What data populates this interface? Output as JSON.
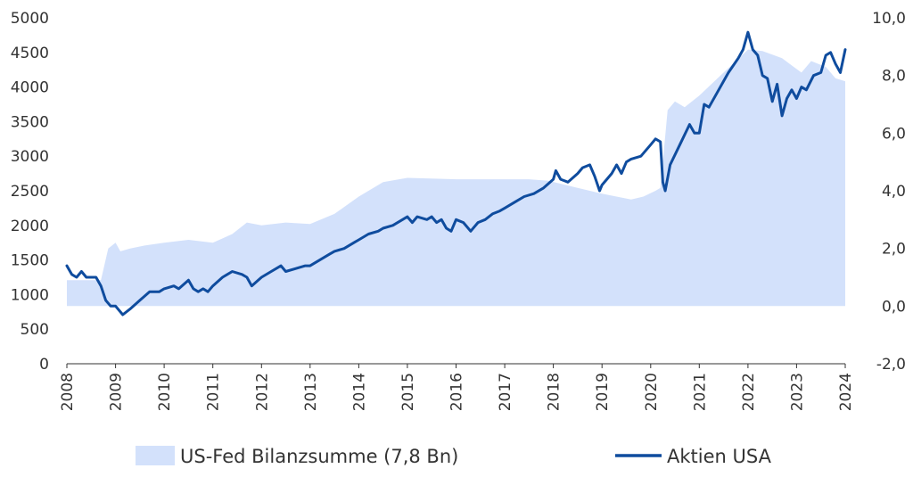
{
  "chart_data": {
    "type": "area",
    "title": "",
    "xlabel": "",
    "ylabel": "",
    "x_tick_labels": [
      "2008",
      "2009",
      "2010",
      "2011",
      "2012",
      "2013",
      "2014",
      "2015",
      "2016",
      "2017",
      "2018",
      "2019",
      "2020",
      "2021",
      "2022",
      "2023",
      "2024"
    ],
    "y_left_tick_labels": [
      "0",
      "500",
      "1000",
      "1500",
      "2000",
      "2500",
      "3000",
      "3500",
      "4000",
      "4500",
      "5000"
    ],
    "y_right_tick_labels": [
      "-2,0",
      "0,0",
      "2,0",
      "4,0",
      "6,0",
      "8,0",
      "10,0"
    ],
    "y_left_lim": [
      0,
      5000
    ],
    "y_right_lim": [
      -2,
      10
    ],
    "x_lim": [
      2008,
      2024
    ],
    "grid": false,
    "legend_position": "bottom",
    "colors": {
      "area": "#d3e1fb",
      "line": "#0f4c9e",
      "text": "#333333"
    },
    "series": [
      {
        "name": "US-Fed Bilanzsumme (7,8 Bn)",
        "axis": "right",
        "kind": "area",
        "points": [
          [
            2008.0,
            0.9
          ],
          [
            2008.7,
            0.9
          ],
          [
            2008.85,
            2.0
          ],
          [
            2009.0,
            2.2
          ],
          [
            2009.1,
            1.9
          ],
          [
            2009.3,
            2.0
          ],
          [
            2009.6,
            2.1
          ],
          [
            2010.0,
            2.2
          ],
          [
            2010.5,
            2.3
          ],
          [
            2011.0,
            2.2
          ],
          [
            2011.4,
            2.5
          ],
          [
            2011.7,
            2.9
          ],
          [
            2012.0,
            2.8
          ],
          [
            2012.5,
            2.9
          ],
          [
            2013.0,
            2.85
          ],
          [
            2013.5,
            3.2
          ],
          [
            2014.0,
            3.8
          ],
          [
            2014.5,
            4.3
          ],
          [
            2015.0,
            4.45
          ],
          [
            2016.0,
            4.4
          ],
          [
            2017.0,
            4.4
          ],
          [
            2017.5,
            4.4
          ],
          [
            2017.9,
            4.35
          ],
          [
            2018.5,
            4.1
          ],
          [
            2019.0,
            3.9
          ],
          [
            2019.6,
            3.7
          ],
          [
            2019.85,
            3.8
          ],
          [
            2020.1,
            4.0
          ],
          [
            2020.2,
            4.1
          ],
          [
            2020.35,
            6.8
          ],
          [
            2020.5,
            7.1
          ],
          [
            2020.7,
            6.9
          ],
          [
            2021.0,
            7.3
          ],
          [
            2021.5,
            8.1
          ],
          [
            2022.0,
            8.9
          ],
          [
            2022.3,
            8.85
          ],
          [
            2022.7,
            8.6
          ],
          [
            2023.1,
            8.1
          ],
          [
            2023.3,
            8.5
          ],
          [
            2023.6,
            8.3
          ],
          [
            2023.8,
            7.9
          ],
          [
            2024.0,
            7.8
          ]
        ]
      },
      {
        "name": "Aktien USA",
        "axis": "right",
        "kind": "line",
        "points": [
          [
            2008.0,
            1.4
          ],
          [
            2008.1,
            1.1
          ],
          [
            2008.2,
            1.0
          ],
          [
            2008.3,
            1.2
          ],
          [
            2008.4,
            1.0
          ],
          [
            2008.5,
            1.0
          ],
          [
            2008.6,
            1.0
          ],
          [
            2008.7,
            0.7
          ],
          [
            2008.8,
            0.2
          ],
          [
            2008.9,
            0.0
          ],
          [
            2009.0,
            0.0
          ],
          [
            2009.15,
            -0.3
          ],
          [
            2009.3,
            -0.1
          ],
          [
            2009.5,
            0.2
          ],
          [
            2009.7,
            0.5
          ],
          [
            2009.9,
            0.5
          ],
          [
            2010.0,
            0.6
          ],
          [
            2010.2,
            0.7
          ],
          [
            2010.3,
            0.6
          ],
          [
            2010.5,
            0.9
          ],
          [
            2010.6,
            0.6
          ],
          [
            2010.7,
            0.5
          ],
          [
            2010.8,
            0.6
          ],
          [
            2010.9,
            0.5
          ],
          [
            2011.0,
            0.7
          ],
          [
            2011.2,
            1.0
          ],
          [
            2011.4,
            1.2
          ],
          [
            2011.6,
            1.1
          ],
          [
            2011.7,
            1.0
          ],
          [
            2011.8,
            0.7
          ],
          [
            2012.0,
            1.0
          ],
          [
            2012.2,
            1.2
          ],
          [
            2012.4,
            1.4
          ],
          [
            2012.5,
            1.2
          ],
          [
            2012.7,
            1.3
          ],
          [
            2012.9,
            1.4
          ],
          [
            2013.0,
            1.4
          ],
          [
            2013.2,
            1.6
          ],
          [
            2013.4,
            1.8
          ],
          [
            2013.5,
            1.9
          ],
          [
            2013.7,
            2.0
          ],
          [
            2013.9,
            2.2
          ],
          [
            2014.0,
            2.3
          ],
          [
            2014.2,
            2.5
          ],
          [
            2014.4,
            2.6
          ],
          [
            2014.5,
            2.7
          ],
          [
            2014.7,
            2.8
          ],
          [
            2014.9,
            3.0
          ],
          [
            2015.0,
            3.1
          ],
          [
            2015.1,
            2.9
          ],
          [
            2015.2,
            3.1
          ],
          [
            2015.4,
            3.0
          ],
          [
            2015.5,
            3.1
          ],
          [
            2015.6,
            2.9
          ],
          [
            2015.7,
            3.0
          ],
          [
            2015.8,
            2.7
          ],
          [
            2015.9,
            2.6
          ],
          [
            2016.0,
            3.0
          ],
          [
            2016.15,
            2.9
          ],
          [
            2016.3,
            2.6
          ],
          [
            2016.45,
            2.9
          ],
          [
            2016.6,
            3.0
          ],
          [
            2016.75,
            3.2
          ],
          [
            2016.9,
            3.3
          ],
          [
            2017.0,
            3.4
          ],
          [
            2017.2,
            3.6
          ],
          [
            2017.4,
            3.8
          ],
          [
            2017.6,
            3.9
          ],
          [
            2017.8,
            4.1
          ],
          [
            2018.0,
            4.4
          ],
          [
            2018.05,
            4.7
          ],
          [
            2018.15,
            4.4
          ],
          [
            2018.3,
            4.3
          ],
          [
            2018.5,
            4.6
          ],
          [
            2018.6,
            4.8
          ],
          [
            2018.75,
            4.9
          ],
          [
            2018.85,
            4.5
          ],
          [
            2018.95,
            4.0
          ],
          [
            2019.0,
            4.2
          ],
          [
            2019.2,
            4.6
          ],
          [
            2019.3,
            4.9
          ],
          [
            2019.4,
            4.6
          ],
          [
            2019.5,
            5.0
          ],
          [
            2019.6,
            5.1
          ],
          [
            2019.8,
            5.2
          ],
          [
            2020.0,
            5.6
          ],
          [
            2020.1,
            5.8
          ],
          [
            2020.2,
            5.7
          ],
          [
            2020.25,
            4.3
          ],
          [
            2020.3,
            4.0
          ],
          [
            2020.4,
            4.9
          ],
          [
            2020.6,
            5.6
          ],
          [
            2020.8,
            6.3
          ],
          [
            2020.9,
            6.0
          ],
          [
            2021.0,
            6.0
          ],
          [
            2021.1,
            7.0
          ],
          [
            2021.2,
            6.9
          ],
          [
            2021.4,
            7.5
          ],
          [
            2021.6,
            8.1
          ],
          [
            2021.8,
            8.6
          ],
          [
            2021.9,
            8.9
          ],
          [
            2022.0,
            9.5
          ],
          [
            2022.1,
            8.9
          ],
          [
            2022.2,
            8.7
          ],
          [
            2022.3,
            8.0
          ],
          [
            2022.4,
            7.9
          ],
          [
            2022.5,
            7.1
          ],
          [
            2022.6,
            7.7
          ],
          [
            2022.7,
            6.6
          ],
          [
            2022.8,
            7.2
          ],
          [
            2022.9,
            7.5
          ],
          [
            2023.0,
            7.2
          ],
          [
            2023.1,
            7.6
          ],
          [
            2023.2,
            7.5
          ],
          [
            2023.35,
            8.0
          ],
          [
            2023.5,
            8.1
          ],
          [
            2023.6,
            8.7
          ],
          [
            2023.7,
            8.8
          ],
          [
            2023.8,
            8.4
          ],
          [
            2023.9,
            8.1
          ],
          [
            2024.0,
            8.9
          ]
        ]
      }
    ]
  }
}
